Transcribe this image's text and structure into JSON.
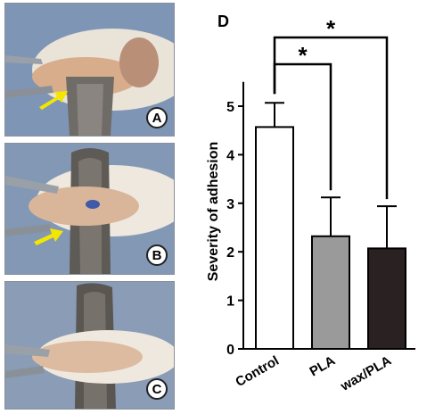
{
  "panels": [
    {
      "letter": "A",
      "arrow_color": "#f3e600"
    },
    {
      "letter": "B",
      "arrow_color": "#f3e600"
    },
    {
      "letter": "C",
      "arrow_color": "#f3e600"
    }
  ],
  "chart_panel_letter": "D",
  "chart_data": {
    "type": "bar",
    "ylabel": "Severity of adhesion",
    "xlabel": "",
    "categories": [
      "Control",
      "PLA",
      "wax/PLA"
    ],
    "values": [
      4.57,
      2.32,
      2.07
    ],
    "errors": [
      0.5,
      0.8,
      0.87
    ],
    "bar_colors": [
      "#ffffff",
      "#9a9a9a",
      "#2a2222"
    ],
    "ylim": [
      0,
      5.5
    ],
    "yticks": [
      0,
      1,
      2,
      3,
      4,
      5
    ],
    "significance": [
      {
        "from": "Control",
        "to": "PLA",
        "label": "*"
      },
      {
        "from": "Control",
        "to": "wax/PLA",
        "label": "*"
      }
    ],
    "grid": false,
    "legend": "none"
  }
}
